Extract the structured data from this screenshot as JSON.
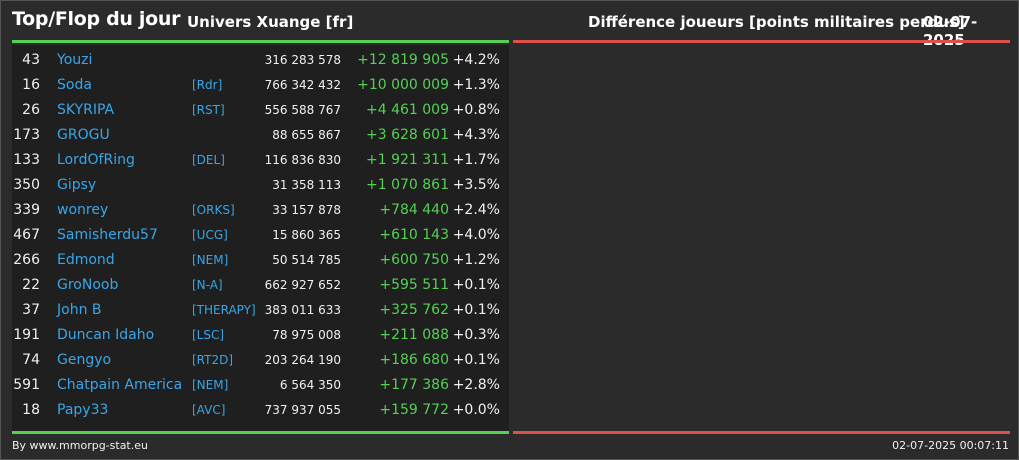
{
  "header": {
    "title": "Top/Flop du jour",
    "universe": "Univers Xuange [fr]",
    "metric": "Différence joueurs [points militaires perdus]",
    "date": "02-07-2025"
  },
  "colors": {
    "background": "#2b2b2b",
    "panel": "#1f1f1f",
    "positive": "#55d055",
    "negative": "#e0504a",
    "link": "#3aa6e6"
  },
  "top": [
    {
      "rank": "43",
      "name": "Youzi",
      "alliance": "",
      "points": "316 283 578",
      "diff": "+12 819 905",
      "pct": "+4.2%"
    },
    {
      "rank": "16",
      "name": "Soda",
      "alliance": "[Rdr]",
      "points": "766 342 432",
      "diff": "+10 000 009",
      "pct": "+1.3%"
    },
    {
      "rank": "26",
      "name": "SKYRIPA",
      "alliance": "[RST]",
      "points": "556 588 767",
      "diff": "+4 461 009",
      "pct": "+0.8%"
    },
    {
      "rank": "173",
      "name": "GROGU",
      "alliance": "",
      "points": "88 655 867",
      "diff": "+3 628 601",
      "pct": "+4.3%"
    },
    {
      "rank": "133",
      "name": "LordOfRing",
      "alliance": "[DEL]",
      "points": "116 836 830",
      "diff": "+1 921 311",
      "pct": "+1.7%"
    },
    {
      "rank": "350",
      "name": "Gipsy",
      "alliance": "",
      "points": "31 358 113",
      "diff": "+1 070 861",
      "pct": "+3.5%"
    },
    {
      "rank": "339",
      "name": "wonrey",
      "alliance": "[ORKS]",
      "points": "33 157 878",
      "diff": "+784 440",
      "pct": "+2.4%"
    },
    {
      "rank": "467",
      "name": "Samisherdu57",
      "alliance": "[UCG]",
      "points": "15 860 365",
      "diff": "+610 143",
      "pct": "+4.0%"
    },
    {
      "rank": "266",
      "name": "Edmond",
      "alliance": "[NEM]",
      "points": "50 514 785",
      "diff": "+600 750",
      "pct": "+1.2%"
    },
    {
      "rank": "22",
      "name": "GroNoob",
      "alliance": "[N-A]",
      "points": "662 927 652",
      "diff": "+595 511",
      "pct": "+0.1%"
    },
    {
      "rank": "37",
      "name": "John B",
      "alliance": "[THERAPY]",
      "points": "383 011 633",
      "diff": "+325 762",
      "pct": "+0.1%"
    },
    {
      "rank": "191",
      "name": "Duncan Idaho",
      "alliance": "[LSC]",
      "points": "78 975 008",
      "diff": "+211 088",
      "pct": "+0.3%"
    },
    {
      "rank": "74",
      "name": "Gengyo",
      "alliance": "[RT2D]",
      "points": "203 264 190",
      "diff": "+186 680",
      "pct": "+0.1%"
    },
    {
      "rank": "591",
      "name": "Chatpain America",
      "alliance": "[NEM]",
      "points": "6 564 350",
      "diff": "+177 386",
      "pct": "+2.8%"
    },
    {
      "rank": "18",
      "name": "Papy33",
      "alliance": "[AVC]",
      "points": "737 937 055",
      "diff": "+159 772",
      "pct": "+0.0%"
    }
  ],
  "footer": {
    "credit": "By www.mmorpg-stat.eu",
    "timestamp": "02-07-2025 00:07:11"
  }
}
